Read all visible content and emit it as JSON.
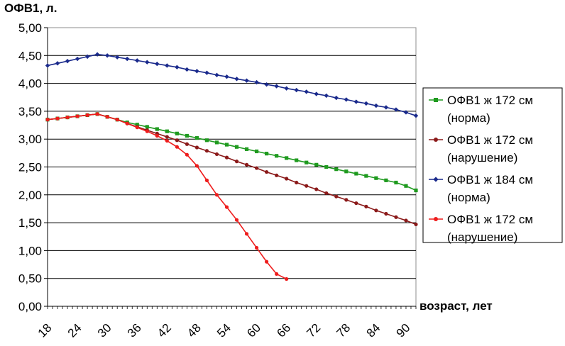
{
  "chart_data": {
    "type": "line",
    "ylabel": "ОФВ1, л.",
    "xlabel": "возраст, лет",
    "ylim": [
      0,
      5
    ],
    "xlim": [
      18,
      92
    ],
    "y_ticks": [
      "0,00",
      "0,50",
      "1,00",
      "1,50",
      "2,00",
      "2,50",
      "3,00",
      "3,50",
      "4,00",
      "4,50",
      "5,00"
    ],
    "x_ticks": [
      "18",
      "24",
      "30",
      "36",
      "42",
      "48",
      "54",
      "60",
      "66",
      "72",
      "78",
      "84",
      "90"
    ],
    "grid": "horizontal",
    "legend_position": "right",
    "series": [
      {
        "name_line1": "ОФВ1 ж 172 см",
        "name_line2": "(норма)",
        "color": "#1f9a1f",
        "marker": "square",
        "x": [
          18,
          20,
          22,
          24,
          26,
          28,
          30,
          32,
          34,
          36,
          38,
          40,
          42,
          44,
          46,
          48,
          50,
          52,
          54,
          56,
          58,
          60,
          62,
          64,
          66,
          68,
          70,
          72,
          74,
          76,
          78,
          80,
          82,
          84,
          86,
          88,
          90,
          92
        ],
        "y": [
          3.35,
          3.37,
          3.39,
          3.41,
          3.43,
          3.45,
          3.4,
          3.35,
          3.3,
          3.26,
          3.22,
          3.18,
          3.14,
          3.1,
          3.06,
          3.02,
          2.98,
          2.94,
          2.9,
          2.86,
          2.82,
          2.78,
          2.74,
          2.7,
          2.66,
          2.62,
          2.58,
          2.54,
          2.5,
          2.46,
          2.42,
          2.38,
          2.34,
          2.3,
          2.26,
          2.22,
          2.16,
          2.08
        ]
      },
      {
        "name_line1": "ОФВ1 ж 172 см",
        "name_line2": "(нарушение)",
        "color": "#8b1a1a",
        "marker": "circle",
        "x": [
          18,
          20,
          22,
          24,
          26,
          28,
          30,
          32,
          34,
          36,
          38,
          40,
          42,
          44,
          46,
          48,
          50,
          52,
          54,
          56,
          58,
          60,
          62,
          64,
          66,
          68,
          70,
          72,
          74,
          76,
          78,
          80,
          82,
          84,
          86,
          88,
          90,
          92
        ],
        "y": [
          3.35,
          3.37,
          3.39,
          3.41,
          3.43,
          3.45,
          3.4,
          3.35,
          3.28,
          3.22,
          3.16,
          3.1,
          3.04,
          2.98,
          2.91,
          2.85,
          2.79,
          2.73,
          2.67,
          2.6,
          2.54,
          2.48,
          2.41,
          2.35,
          2.29,
          2.22,
          2.16,
          2.1,
          2.03,
          1.97,
          1.91,
          1.85,
          1.79,
          1.72,
          1.66,
          1.6,
          1.54,
          1.47
        ]
      },
      {
        "name_line1": "ОФВ1 ж 184 см",
        "name_line2": "(норма)",
        "color": "#1a2a8c",
        "marker": "diamond",
        "x": [
          18,
          20,
          22,
          24,
          26,
          28,
          30,
          32,
          34,
          36,
          38,
          40,
          42,
          44,
          46,
          48,
          50,
          52,
          54,
          56,
          58,
          60,
          62,
          64,
          66,
          68,
          70,
          72,
          74,
          76,
          78,
          80,
          82,
          84,
          86,
          88,
          90,
          92
        ],
        "y": [
          4.32,
          4.36,
          4.4,
          4.44,
          4.48,
          4.52,
          4.5,
          4.47,
          4.44,
          4.41,
          4.38,
          4.35,
          4.32,
          4.29,
          4.25,
          4.22,
          4.19,
          4.15,
          4.12,
          4.08,
          4.05,
          4.02,
          3.98,
          3.95,
          3.91,
          3.88,
          3.85,
          3.81,
          3.78,
          3.74,
          3.71,
          3.67,
          3.64,
          3.6,
          3.57,
          3.53,
          3.48,
          3.42
        ]
      },
      {
        "name_line1": "ОФВ1 ж 172 см",
        "name_line2": "(нарушение)",
        "color": "#ee1c1c",
        "marker": "circle",
        "x": [
          18,
          20,
          22,
          24,
          26,
          28,
          30,
          32,
          34,
          36,
          38,
          40,
          42,
          44,
          46,
          48,
          50,
          52,
          54,
          56,
          58,
          60,
          62,
          64,
          66
        ],
        "y": [
          3.35,
          3.37,
          3.39,
          3.41,
          3.43,
          3.45,
          3.4,
          3.35,
          3.28,
          3.21,
          3.14,
          3.06,
          2.97,
          2.86,
          2.72,
          2.52,
          2.26,
          2.0,
          1.78,
          1.55,
          1.3,
          1.05,
          0.8,
          0.58,
          0.49
        ]
      }
    ]
  }
}
